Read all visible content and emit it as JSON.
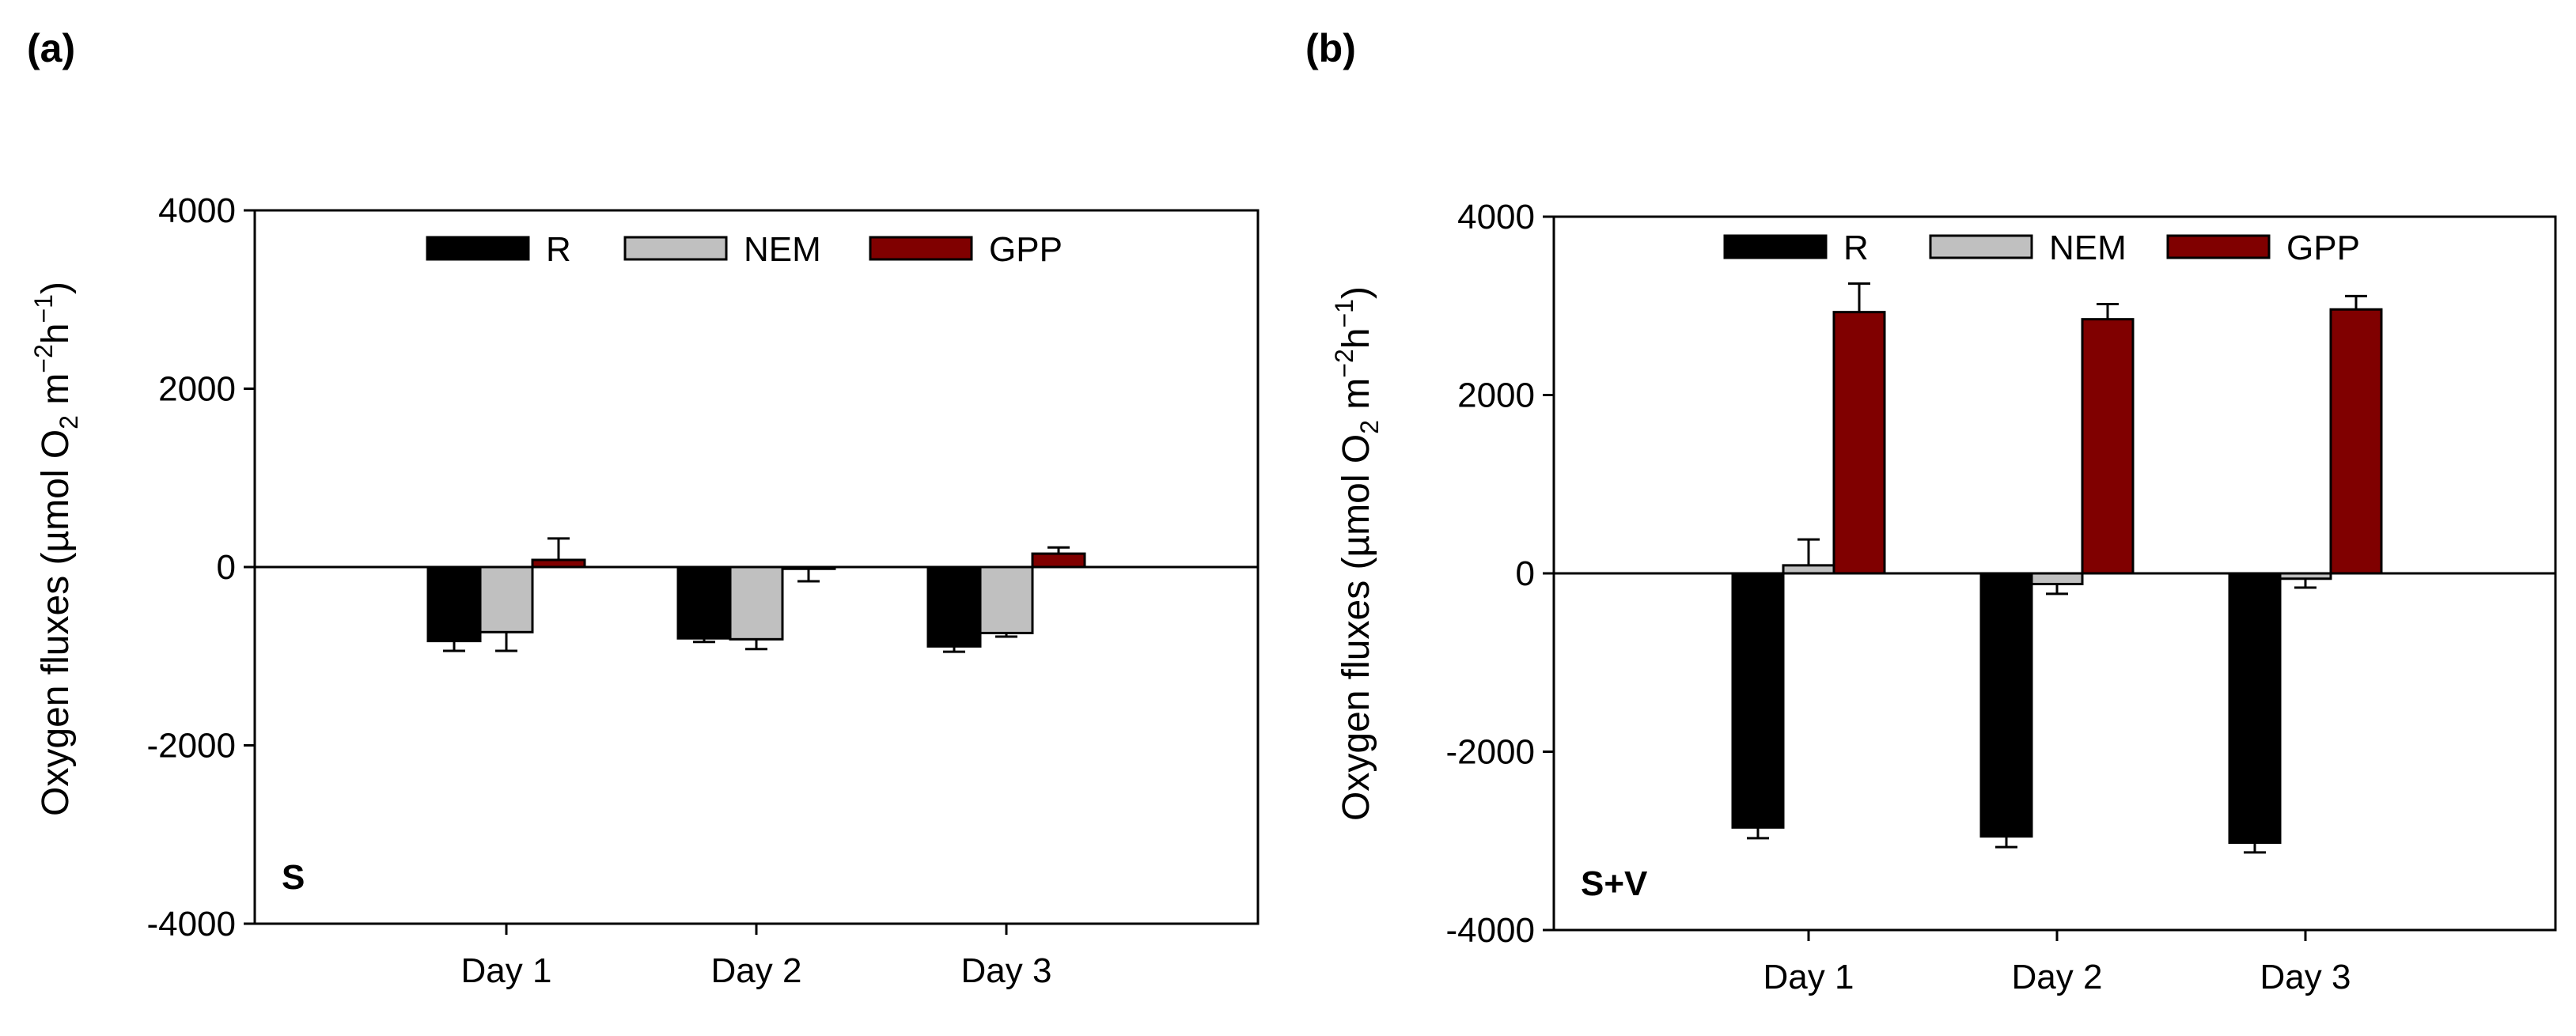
{
  "chart_data": [
    {
      "type": "bar",
      "panel_label": "(a)",
      "corner_label": "S",
      "ylabel": {
        "prefix": "Oxygen fluxes (",
        "mu": "µ",
        "mol": "mol O",
        "sub2": "2",
        "m": " m",
        "supm2": "−2",
        "h": "h",
        "supm1": "−1",
        "close": ")"
      },
      "ylim": [
        -4000,
        4000
      ],
      "yticks": [
        -4000,
        -2000,
        0,
        2000,
        4000
      ],
      "ytick_labels": [
        "-4000",
        "-2000",
        "0",
        "2000",
        "4000"
      ],
      "categories": [
        "Day 1",
        "Day 2",
        "Day 3"
      ],
      "legend_position": "top-center",
      "series": [
        {
          "name": "R",
          "color": "#000000",
          "values": [
            -830,
            -800,
            -890
          ],
          "errors": [
            110,
            40,
            60
          ]
        },
        {
          "name": "NEM",
          "color": "#c0c0c0",
          "values": [
            -730,
            -810,
            -740
          ],
          "errors": [
            210,
            110,
            40
          ]
        },
        {
          "name": "GPP",
          "color": "#800000",
          "values": [
            80,
            -20,
            150
          ],
          "errors": [
            240,
            140,
            70
          ]
        }
      ]
    },
    {
      "type": "bar",
      "panel_label": "(b)",
      "corner_label": "S+V",
      "ylabel": {
        "prefix": "Oxygen fluxes (",
        "mu": "µ",
        "mol": "mol O",
        "sub2": "2",
        "m": " m",
        "supm2": "−2",
        "h": "h",
        "supm1": "−1",
        "close": ")"
      },
      "ylim": [
        -4000,
        4000
      ],
      "yticks": [
        -4000,
        -2000,
        0,
        2000,
        4000
      ],
      "ytick_labels": [
        "-4000",
        "-2000",
        "0",
        "2000",
        "4000"
      ],
      "categories": [
        "Day 1",
        "Day 2",
        "Day 3"
      ],
      "legend_position": "top-center",
      "series": [
        {
          "name": "R",
          "color": "#000000",
          "values": [
            -2850,
            -2950,
            -3020
          ],
          "errors": [
            120,
            120,
            110
          ]
        },
        {
          "name": "NEM",
          "color": "#c0c0c0",
          "values": [
            90,
            -120,
            -60
          ],
          "errors": [
            290,
            110,
            100
          ]
        },
        {
          "name": "GPP",
          "color": "#800000",
          "values": [
            2930,
            2850,
            2960
          ],
          "errors": [
            320,
            170,
            150
          ]
        }
      ]
    }
  ]
}
